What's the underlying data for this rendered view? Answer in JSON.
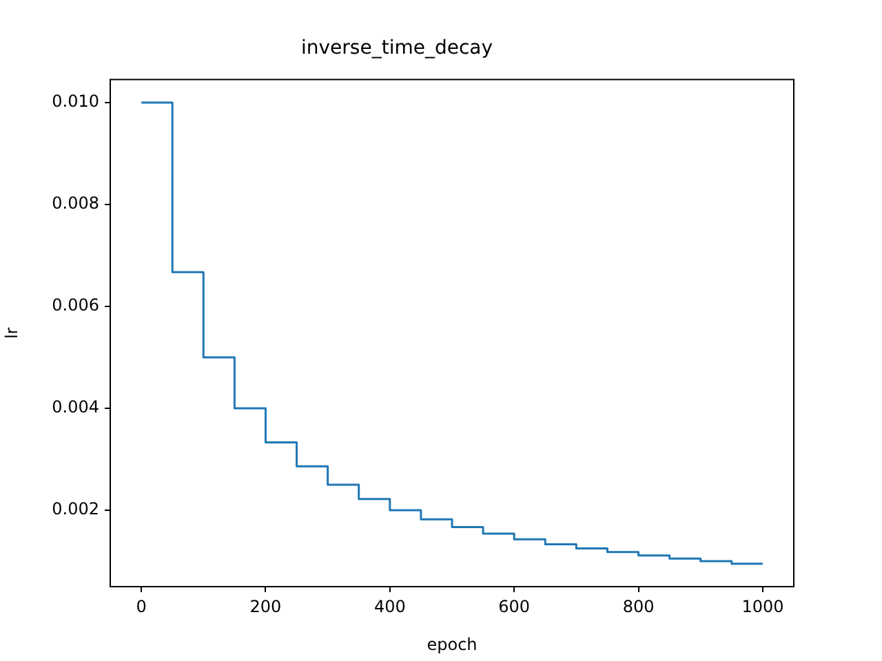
{
  "chart_data": {
    "type": "step",
    "title": "inverse_time_decay",
    "xlabel": "epoch",
    "ylabel": "lr",
    "x": [
      0,
      50,
      100,
      150,
      200,
      250,
      300,
      350,
      400,
      450,
      500,
      550,
      600,
      650,
      700,
      750,
      800,
      850,
      900,
      950,
      1000
    ],
    "values": [
      0.01,
      0.00667,
      0.005,
      0.004,
      0.00333,
      0.00286,
      0.0025,
      0.00222,
      0.002,
      0.00182,
      0.00167,
      0.00154,
      0.00143,
      0.00133,
      0.00125,
      0.00118,
      0.00111,
      0.00105,
      0.001,
      0.00095,
      0.00095
    ],
    "color": "#1f77b4",
    "xlim": [
      -50,
      1050
    ],
    "ylim": [
      0.0005,
      0.01045
    ],
    "xticks": [
      0,
      200,
      400,
      600,
      800,
      1000
    ],
    "yticks": [
      0.002,
      0.004,
      0.006,
      0.008,
      {
        "value": 0.01,
        "label": "0.010"
      }
    ]
  }
}
